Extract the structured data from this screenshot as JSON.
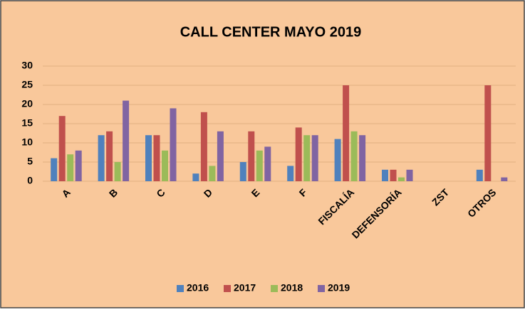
{
  "chart_data": {
    "type": "bar",
    "title": "CALL CENTER MAYO 2019",
    "categories": [
      "A",
      "B",
      "C",
      "D",
      "E",
      "F",
      "FISCALÍA",
      "DEFENSORÍA",
      "ZST",
      "OTROS"
    ],
    "series": [
      {
        "name": "2016",
        "color": "#4f81bd",
        "values": [
          6,
          12,
          12,
          2,
          5,
          4,
          11,
          3,
          0,
          3
        ]
      },
      {
        "name": "2017",
        "color": "#c0504d",
        "values": [
          17,
          13,
          12,
          18,
          13,
          14,
          25,
          3,
          0,
          25
        ]
      },
      {
        "name": "2018",
        "color": "#9bbb59",
        "values": [
          7,
          5,
          8,
          4,
          8,
          12,
          13,
          1,
          0,
          0
        ]
      },
      {
        "name": "2019",
        "color": "#8064a2",
        "values": [
          8,
          21,
          19,
          13,
          9,
          12,
          12,
          3,
          0,
          1
        ]
      }
    ],
    "ylim": [
      0,
      30
    ],
    "yticks": [
      0,
      5,
      10,
      15,
      20,
      25,
      30
    ],
    "grid": true,
    "legend": "bottom"
  }
}
